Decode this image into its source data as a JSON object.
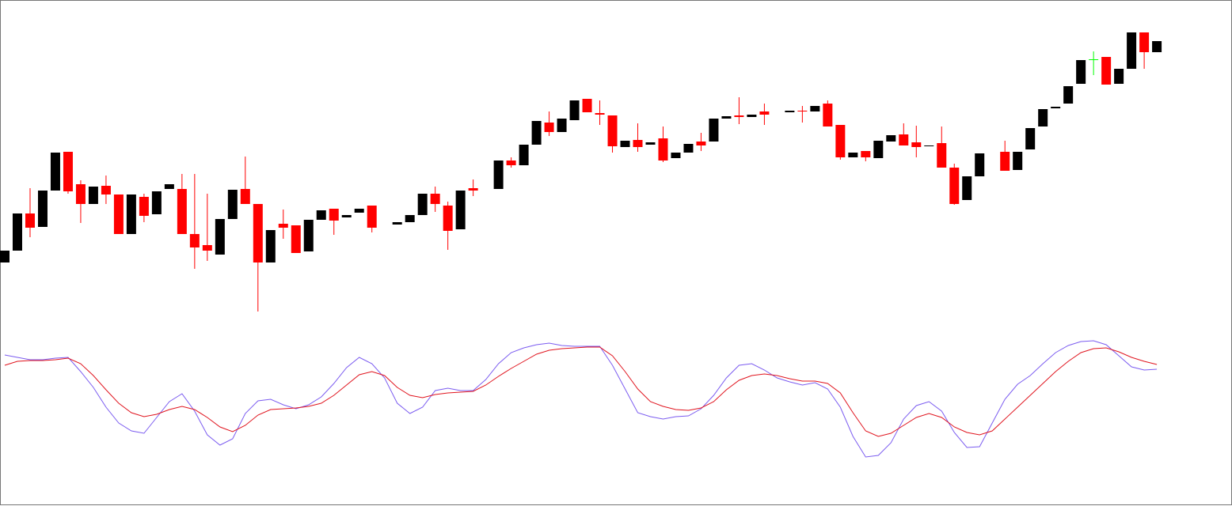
{
  "chart_data": [
    {
      "type": "candlestick",
      "ylim": [
        0,
        400
      ],
      "up_color": "#000000",
      "down_color": "#ff0000",
      "doji_color": "#00ff00",
      "open": [
        68,
        83,
        130,
        113,
        159,
        208,
        167,
        142,
        165,
        154,
        104,
        151,
        129,
        161,
        161,
        104,
        90,
        78,
        123,
        161,
        142,
        68,
        117,
        115,
        82,
        122,
        136,
        125,
        131,
        140,
        null,
        116,
        119,
        128,
        155,
        140,
        110,
        162,
        null,
        161,
        197,
        191,
        217,
        245,
        233,
        248,
        275,
        257,
        254,
        214,
        223,
        217,
        225,
        200,
        207,
        221,
        221,
        250,
        254,
        252,
        259,
        null,
        258,
        260,
        259,
        269,
        242,
        201,
        209,
        200,
        221,
        230,
        220,
        215,
        219,
        188,
        147,
        177,
        null,
        208,
        185,
        211,
        240,
        263,
        269,
        294,
        325,
        328,
        294,
        313,
        359,
        334
      ],
      "high": [
        83,
        130,
        162,
        159,
        207,
        208,
        172,
        164,
        178,
        154,
        154,
        155,
        158,
        167,
        180,
        180,
        155,
        123,
        160,
        202,
        142,
        109,
        135,
        115,
        122,
        134,
        136,
        128,
        136,
        140,
        null,
        119,
        128,
        155,
        164,
        145,
        159,
        173,
        null,
        197,
        201,
        217,
        247,
        259,
        250,
        273,
        275,
        273,
        254,
        222,
        244,
        220,
        240,
        207,
        218,
        232,
        250,
        253,
        277,
        255,
        269,
        null,
        260,
        266,
        266,
        273,
        242,
        207,
        209,
        222,
        229,
        244,
        241,
        216,
        240,
        193,
        177,
        206,
        null,
        222,
        208,
        238,
        262,
        265,
        291,
        324,
        335,
        328,
        313,
        359,
        359,
        348
      ],
      "low": [
        68,
        83,
        100,
        113,
        159,
        155,
        118,
        142,
        142,
        104,
        104,
        119,
        129,
        161,
        104,
        60,
        70,
        78,
        123,
        142,
        6,
        68,
        98,
        80,
        82,
        122,
        103,
        125,
        131,
        106,
        null,
        116,
        119,
        128,
        132,
        84,
        110,
        152,
        null,
        161,
        188,
        191,
        217,
        228,
        233,
        248,
        258,
        242,
        207,
        214,
        208,
        217,
        195,
        200,
        207,
        209,
        221,
        250,
        243,
        252,
        242,
        null,
        258,
        245,
        259,
        240,
        198,
        201,
        196,
        200,
        221,
        216,
        201,
        215,
        188,
        141,
        147,
        177,
        null,
        184,
        185,
        211,
        240,
        263,
        269,
        294,
        305,
        293,
        294,
        313,
        313,
        334
      ],
      "close": [
        83,
        130,
        112,
        159,
        207,
        158,
        142,
        164,
        154,
        104,
        154,
        127,
        158,
        167,
        104,
        87,
        83,
        123,
        160,
        142,
        68,
        109,
        112,
        80,
        122,
        134,
        121,
        128,
        136,
        112,
        null,
        119,
        128,
        155,
        142,
        108,
        159,
        159,
        null,
        197,
        191,
        217,
        247,
        233,
        250,
        273,
        258,
        255,
        215,
        222,
        214,
        220,
        197,
        207,
        218,
        216,
        250,
        253,
        252,
        255,
        255,
        null,
        260,
        259,
        266,
        240,
        201,
        207,
        201,
        222,
        229,
        216,
        214,
        216,
        188,
        142,
        177,
        206,
        null,
        184,
        208,
        238,
        262,
        265,
        291,
        324,
        325,
        293,
        313,
        359,
        334,
        348
      ]
    },
    {
      "type": "line",
      "ylim": [
        0,
        100
      ],
      "series": [
        {
          "color": "#7b5cf0",
          "values": [
            75.5,
            74,
            72.5,
            72.5,
            73.5,
            74,
            65,
            55,
            42.5,
            32.5,
            27.5,
            26,
            36,
            46,
            51,
            40,
            25,
            18.5,
            22.5,
            38.5,
            46.5,
            47.5,
            44,
            41.5,
            44,
            49,
            57.5,
            67.5,
            74,
            70,
            61,
            45,
            38.5,
            42.5,
            53,
            54.5,
            53,
            53,
            60,
            70,
            77,
            80,
            82,
            83,
            81.5,
            81,
            81,
            81,
            69,
            54,
            39,
            36.5,
            35,
            36.5,
            37,
            41.5,
            50,
            61,
            69,
            70,
            66,
            61,
            58.5,
            56.5,
            58,
            54,
            42.5,
            24,
            11,
            12,
            20,
            35,
            43.5,
            46,
            40,
            26.5,
            17,
            17.5,
            32.5,
            47.5,
            57,
            62.5,
            70,
            77,
            81.5,
            84,
            84.5,
            82,
            75,
            68,
            66,
            66.5
          ]
        },
        {
          "color": "#e0141e",
          "values": [
            69,
            71.5,
            72,
            72,
            72.5,
            73.5,
            70,
            62.5,
            53.5,
            45,
            39,
            36.5,
            38,
            41,
            43,
            41,
            36,
            30,
            27,
            31,
            37.5,
            41,
            41.5,
            42,
            43,
            45,
            50,
            56.5,
            63,
            65,
            62.5,
            55,
            50,
            48.5,
            50.5,
            51.5,
            52,
            52.5,
            56.5,
            62,
            67,
            71.5,
            76,
            78.5,
            79.5,
            80,
            80.5,
            80.5,
            75,
            65,
            54,
            46,
            43,
            41,
            40.5,
            42,
            46,
            53.5,
            59.5,
            62.5,
            63.5,
            62.5,
            60.5,
            59,
            59,
            57.5,
            51.5,
            39,
            27.5,
            24,
            26,
            31,
            36,
            38.5,
            36,
            30,
            26.5,
            25,
            27.5,
            35,
            42.5,
            50,
            57.5,
            65,
            71.5,
            77,
            79.5,
            80,
            77.5,
            74,
            71.5,
            69.5
          ]
        }
      ]
    }
  ]
}
